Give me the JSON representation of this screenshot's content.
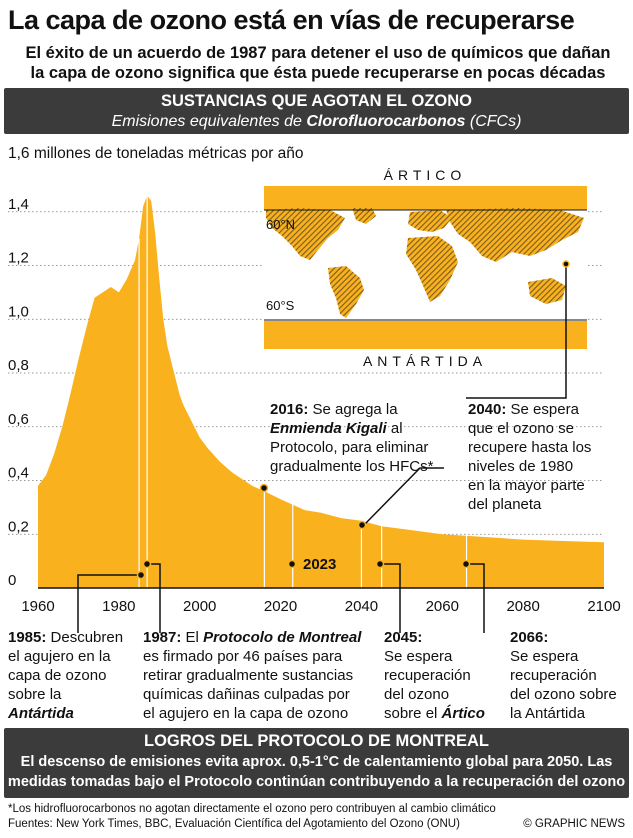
{
  "title": "La capa de ozono está en vías de recuperarse",
  "subtitle_line1": "El éxito de un acuerdo de 1987 para detener el uso de químicos que dañan",
  "subtitle_line2": "la capa de ozono significa que ésta puede recuperarse en pocas décadas",
  "banner_top": {
    "heading": "SUSTANCIAS QUE AGOTAN EL OZONO",
    "sub_pre": "Emisiones equivalentes de ",
    "sub_bold": "Clorofluorocarbonos",
    "sub_post": " (CFCs)"
  },
  "colors": {
    "area": "#f9b21e",
    "dark": "#3b3b3b",
    "map_land": "#a07a3a",
    "map_sea": "#f9b21e"
  },
  "chart_data": {
    "type": "area",
    "ylabel": "1,6 millones de toneladas métricas por año",
    "xlim": [
      1960,
      2100
    ],
    "ylim": [
      0,
      1.6
    ],
    "x_ticks": [
      "1960",
      "1980",
      "2000",
      "2020",
      "2040",
      "2060",
      "2080",
      "2100"
    ],
    "y_ticks": [
      "0",
      "0,2",
      "0,4",
      "0,6",
      "0,8",
      "1,0",
      "1,2",
      "1,4"
    ],
    "x": [
      1960,
      1962,
      1964,
      1966,
      1968,
      1970,
      1972,
      1974,
      1976,
      1978,
      1980,
      1982,
      1984,
      1985,
      1986,
      1987,
      1988,
      1989,
      1990,
      1991,
      1992,
      1993,
      1994,
      1995,
      1996,
      1998,
      2000,
      2002,
      2005,
      2008,
      2010,
      2013,
      2016,
      2020,
      2023,
      2026,
      2030,
      2035,
      2040,
      2045,
      2050,
      2060,
      2070,
      2080,
      2090,
      2100
    ],
    "values": [
      0.38,
      0.42,
      0.5,
      0.6,
      0.72,
      0.85,
      0.97,
      1.08,
      1.1,
      1.12,
      1.1,
      1.15,
      1.22,
      1.3,
      1.42,
      1.46,
      1.44,
      1.32,
      1.15,
      1.0,
      0.9,
      0.84,
      0.78,
      0.72,
      0.68,
      0.62,
      0.56,
      0.52,
      0.47,
      0.43,
      0.41,
      0.38,
      0.36,
      0.33,
      0.31,
      0.29,
      0.28,
      0.26,
      0.25,
      0.23,
      0.22,
      0.2,
      0.19,
      0.18,
      0.175,
      0.17
    ],
    "highlight_year": "2023",
    "vertical_markers": [
      1985,
      1987,
      2016,
      2023,
      2040,
      2045,
      2066
    ]
  },
  "map": {
    "arctic": "ÁRTICO",
    "antarctic": "ANTÁRTIDA",
    "lat_north": "60°N",
    "lat_south": "60°S"
  },
  "annotations": {
    "a2016": {
      "year": "2016:",
      "text1": " Se agrega la",
      "bold2": "Enmienda Kigali",
      "text2": " al",
      "line3": "Protocolo, para eliminar",
      "line4": "gradualmente los HFCs*"
    },
    "a2040": {
      "year": "2040:",
      "text1": " Se espera",
      "line2": "que el ozono se",
      "line3": "recupere hasta los",
      "line4": "niveles de 1980",
      "line5": "en la mayor parte",
      "line6": "del planeta"
    },
    "a1985": {
      "year": "1985:",
      "text1": " Descubren",
      "line2": "el agujero en la",
      "line3": "capa de ozono",
      "line4": "sobre la",
      "line5": "Antártida"
    },
    "a1987": {
      "year": "1987:",
      "text1": " El ",
      "bold1": "Protocolo de Montreal",
      "line2": "es firmado por 46 países para",
      "line3": "retirar gradualmente sustancias",
      "line4": "químicas dañinas culpadas por",
      "line5": "el agujero en la capa de ozono"
    },
    "a2045": {
      "year": "2045:",
      "line2": "Se espera",
      "line3": "recuperación",
      "line4": "del ozono",
      "line5_pre": "sobre el ",
      "line5_bold": "Ártico"
    },
    "a2066": {
      "year": "2066:",
      "line2": "Se espera",
      "line3": "recuperación",
      "line4": "del ozono sobre",
      "line5": "la Antártida"
    }
  },
  "banner_bottom": {
    "heading": "LOGROS DEL PROTOCOLO DE MONTREAL",
    "line1": "El descenso de emisiones evita aprox. 0,5-1°C de calentamiento global para 2050. Las",
    "line2": "medidas tomadas bajo el Protocolo continúan contribuyendo a la recuperación del ozono"
  },
  "footnote": "*Los hidrofluorocarbonos no agotan directamente el ozono pero contribuyen al cambio climático",
  "sources": "Fuentes: New York Times, BBC, Evaluación Científica del Agotamiento del Ozono (ONU)",
  "credit": "© GRAPHIC NEWS"
}
